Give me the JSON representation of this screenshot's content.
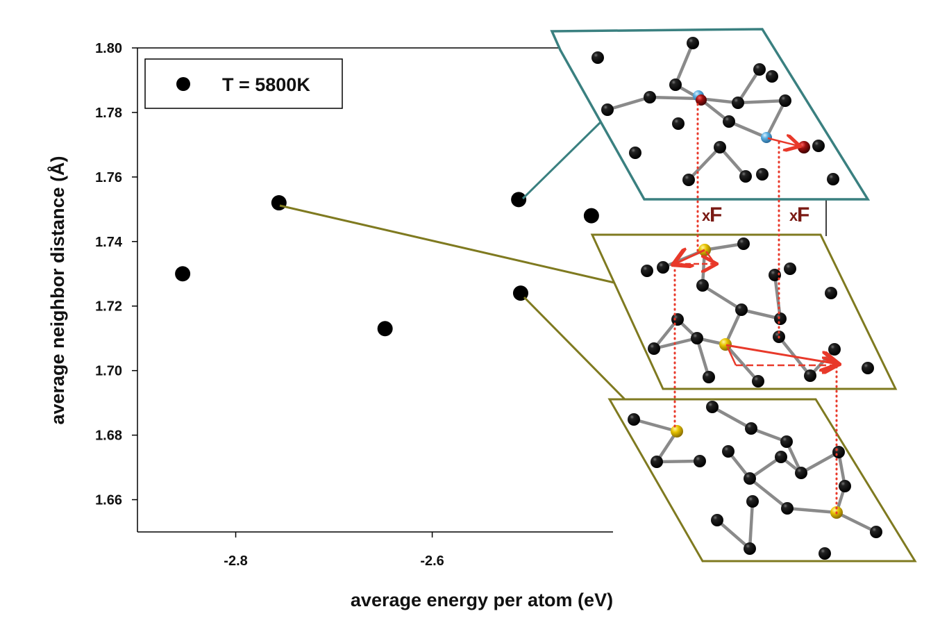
{
  "chart_data": {
    "type": "scatter",
    "title": "",
    "xlabel": "average energy per atom (eV)",
    "ylabel": "average neighbor distance (Å)",
    "xlim": [
      -2.9,
      -2.416
    ],
    "ylim": [
      1.65,
      1.8
    ],
    "xticks": [
      -2.8,
      -2.6
    ],
    "xtick_labels": [
      "-2.8",
      "-2.6"
    ],
    "yticks": [
      1.66,
      1.68,
      1.7,
      1.72,
      1.74,
      1.76,
      1.78,
      1.8
    ],
    "ytick_labels": [
      "1.66",
      "1.68",
      "1.70",
      "1.72",
      "1.74",
      "1.76",
      "1.78",
      "1.80"
    ],
    "grid": false,
    "legend": {
      "placement": "top-left",
      "entries": [
        "T = 5800K"
      ]
    },
    "series": [
      {
        "name": "T = 5800K",
        "color": "#000000",
        "x": [
          -2.854,
          -2.756,
          -2.648,
          -2.512,
          -2.51,
          -2.438
        ],
        "y": [
          1.73,
          1.752,
          1.713,
          1.753,
          1.724,
          1.748
        ]
      }
    ]
  },
  "inset": {
    "force_label_1": {
      "prefix": "x",
      "symbol": "F"
    },
    "force_label_2": {
      "prefix": "x",
      "symbol": "F"
    },
    "colors": {
      "top_frame": "#3a8080",
      "lower_frames": "#7f7a20",
      "arrow": "#e8392a",
      "highlight_yellow": "#e8c400",
      "highlight_blue": "#5aaee0",
      "highlight_red": "#a01010"
    }
  }
}
